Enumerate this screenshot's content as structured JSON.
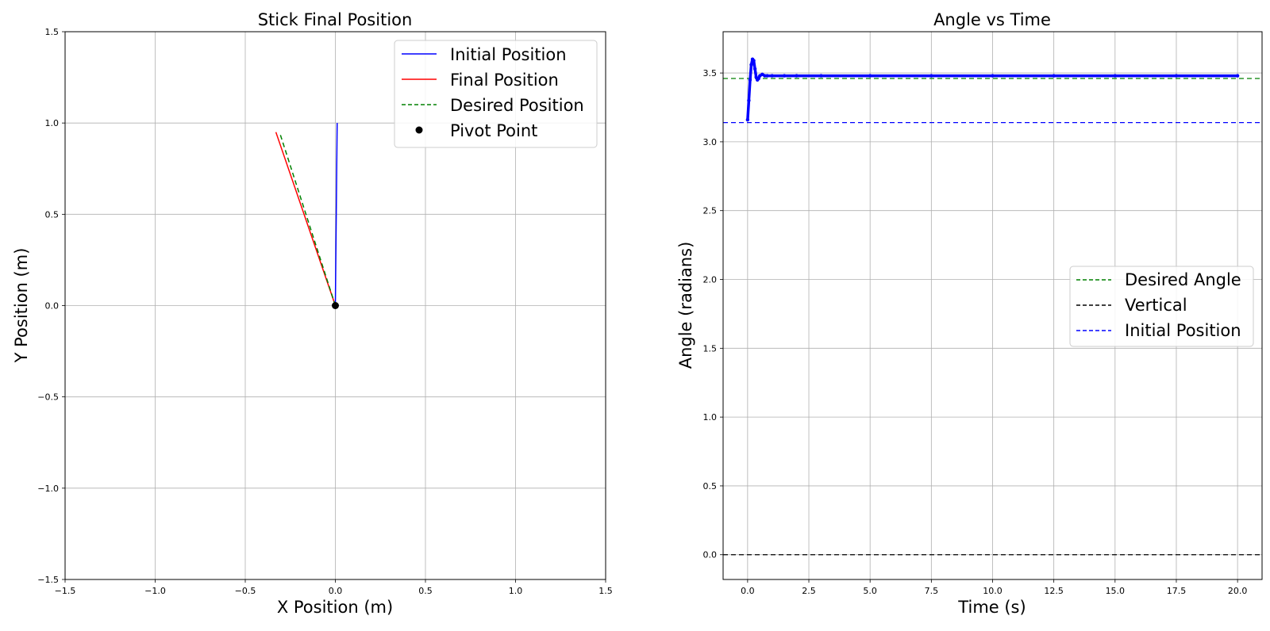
{
  "chart_data": [
    {
      "type": "line",
      "title": "Stick Final Position",
      "xlabel": "X Position (m)",
      "ylabel": "Y Position (m)",
      "xlim": [
        -1.5,
        1.5
      ],
      "ylim": [
        -1.5,
        1.5
      ],
      "xticks": [
        -1.5,
        -1.0,
        -0.5,
        0.0,
        0.5,
        1.0,
        1.5
      ],
      "yticks": [
        -1.5,
        -1.0,
        -0.5,
        0.0,
        0.5,
        1.0,
        1.5
      ],
      "xtick_labels": [
        "−1.5",
        "−1.0",
        "−0.5",
        "0.0",
        "0.5",
        "1.0",
        "1.5"
      ],
      "ytick_labels": [
        "−1.5",
        "−1.0",
        "−0.5",
        "0.0",
        "0.5",
        "1.0",
        "1.5"
      ],
      "grid": true,
      "legend_position": "upper right",
      "series": [
        {
          "name": "Initial Position",
          "color": "#0000ff",
          "style": "solid",
          "x": [
            0.0,
            0.01
          ],
          "y": [
            0.0,
            1.0
          ]
        },
        {
          "name": "Final Position",
          "color": "#ff0000",
          "style": "solid",
          "x": [
            0.0,
            -0.33
          ],
          "y": [
            0.0,
            0.95
          ]
        },
        {
          "name": "Desired Position",
          "color": "#008000",
          "style": "dashed",
          "x": [
            0.0,
            -0.31
          ],
          "y": [
            0.0,
            0.95
          ]
        },
        {
          "name": "Pivot Point",
          "color": "#000000",
          "style": "marker",
          "x": [
            0.0
          ],
          "y": [
            0.0
          ]
        }
      ]
    },
    {
      "type": "line",
      "title": "Angle vs Time",
      "xlabel": "Time (s)",
      "ylabel": "Angle (radians)",
      "xlim": [
        -1.0,
        21.0
      ],
      "ylim": [
        -0.18,
        3.8
      ],
      "xticks": [
        0.0,
        2.5,
        5.0,
        7.5,
        10.0,
        12.5,
        15.0,
        17.5,
        20.0
      ],
      "yticks": [
        0.0,
        0.5,
        1.0,
        1.5,
        2.0,
        2.5,
        3.0,
        3.5
      ],
      "xtick_labels": [
        "0.0",
        "2.5",
        "5.0",
        "7.5",
        "10.0",
        "12.5",
        "15.0",
        "17.5",
        "20.0"
      ],
      "ytick_labels": [
        "0.0",
        "0.5",
        "1.0",
        "1.5",
        "2.0",
        "2.5",
        "3.0",
        "3.5"
      ],
      "grid": true,
      "legend_position": "center right",
      "series": [
        {
          "name": "Desired Angle",
          "color": "#008000",
          "style": "dashed-hline",
          "y": 3.46
        },
        {
          "name": "Vertical",
          "color": "#000000",
          "style": "dashed-hline",
          "y": 0.0
        },
        {
          "name": "Initial Position",
          "color": "#0000ff",
          "style": "dashed-hline",
          "y": 3.14
        },
        {
          "name": "",
          "color": "#0000ff",
          "style": "dots",
          "x": [
            0.0,
            0.05,
            0.1,
            0.15,
            0.2,
            0.25,
            0.3,
            0.35,
            0.4,
            0.45,
            0.5,
            0.6,
            0.7,
            0.8,
            1.0,
            1.5,
            2.0,
            3.0,
            5.0,
            7.5,
            10.0,
            12.5,
            15.0,
            17.5,
            20.0
          ],
          "y": [
            3.16,
            3.3,
            3.45,
            3.56,
            3.6,
            3.59,
            3.53,
            3.47,
            3.45,
            3.46,
            3.48,
            3.49,
            3.48,
            3.48,
            3.48,
            3.48,
            3.48,
            3.48,
            3.48,
            3.48,
            3.48,
            3.48,
            3.48,
            3.48,
            3.48
          ]
        }
      ]
    }
  ]
}
